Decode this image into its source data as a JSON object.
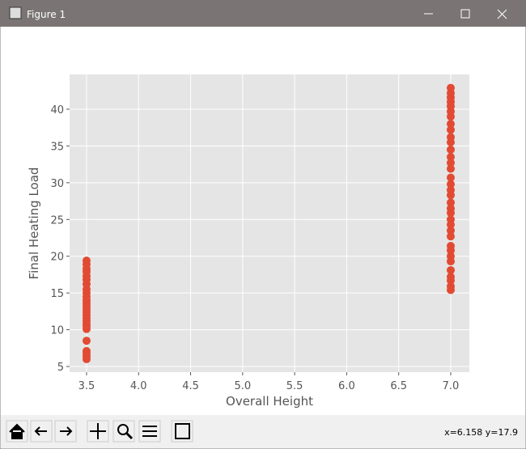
{
  "window": {
    "title": "Figure 1",
    "status": "x=6.158 y=17.9"
  },
  "chart_data": {
    "type": "scatter",
    "xlabel": "Overall Height",
    "ylabel": "Final Heating Load",
    "color": "#e24a33",
    "grid": true,
    "x": [
      3.5,
      3.5,
      3.5,
      3.5,
      3.5,
      3.5,
      3.5,
      3.5,
      3.5,
      3.5,
      3.5,
      3.5,
      3.5,
      3.5,
      3.5,
      3.5,
      3.5,
      3.5,
      3.5,
      3.5,
      3.5,
      3.5,
      3.5,
      3.5,
      3.5,
      3.5,
      7,
      7,
      7,
      7,
      7,
      7,
      7,
      7,
      7,
      7,
      7,
      7,
      7,
      7,
      7,
      7,
      7,
      7,
      7,
      7,
      7,
      7,
      7,
      7,
      7,
      7,
      7,
      7,
      7,
      7,
      7,
      7,
      7,
      7,
      7
    ],
    "values": [
      6.0,
      6.4,
      6.8,
      7.1,
      8.5,
      10.1,
      10.5,
      10.8,
      11.2,
      11.6,
      12.0,
      12.4,
      12.8,
      13.2,
      13.6,
      14.0,
      14.5,
      15.0,
      15.5,
      16.2,
      16.8,
      17.3,
      17.9,
      18.3,
      18.9,
      19.4,
      15.4,
      15.9,
      16.7,
      17.2,
      18.1,
      19.3,
      20.0,
      20.8,
      21.4,
      22.7,
      23.5,
      24.3,
      25.0,
      25.9,
      26.5,
      27.3,
      28.3,
      29.0,
      29.8,
      30.7,
      31.9,
      32.7,
      33.5,
      34.5,
      35.5,
      36.2,
      37.2,
      38.0,
      39.0,
      39.7,
      40.4,
      41.0,
      41.6,
      42.2,
      42.9
    ],
    "xlim": [
      3.337,
      7.179
    ],
    "ylim": [
      4.23,
      44.73
    ],
    "xticks": [
      3.5,
      {
        "value": 4,
        "label": "4.0"
      },
      4.5,
      {
        "value": 5,
        "label": "5.0"
      },
      5.5,
      {
        "value": 6,
        "label": "6.0"
      },
      6.5,
      {
        "value": 7,
        "label": "7.0"
      }
    ],
    "yticks": [
      5,
      10,
      15,
      20,
      25,
      30,
      35,
      40
    ]
  }
}
